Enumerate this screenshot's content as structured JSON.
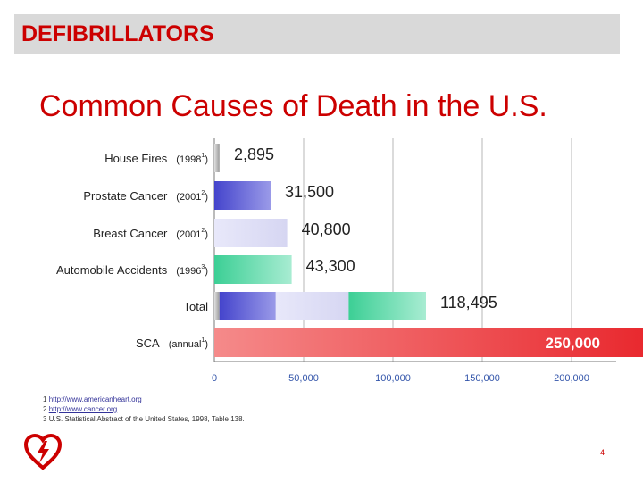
{
  "header": {
    "title": "DEFIBRILLATORS"
  },
  "slide": {
    "title": "Common Causes of Death in the U.S."
  },
  "colors": {
    "accent": "#cc0000",
    "header_bg": "#d9d9d9",
    "house_fires": "#9a9a9a",
    "prostate_cancer": "#4444cc",
    "breast_cancer": "#d6d6f2",
    "automobile_accidents": "#3ccf95",
    "sca": "#e8252b",
    "grid": "#999999",
    "tick_text": "#3355aa"
  },
  "chart_data": {
    "type": "bar",
    "orientation": "horizontal",
    "title": "Common Causes of Death in the U.S.",
    "xlim": [
      0,
      250000
    ],
    "xticks": [
      "0",
      "50,000",
      "100,000",
      "150,000",
      "200,000"
    ],
    "xtick_values": [
      0,
      50000,
      100000,
      150000,
      200000
    ],
    "grid": true,
    "rows": [
      {
        "key": "house_fires",
        "label": "House Fires",
        "note_prefix": "(1998",
        "note_sup": "1",
        "note_suffix": ")",
        "value": 2895,
        "value_label": "2,895"
      },
      {
        "key": "prostate_cancer",
        "label": "Prostate Cancer",
        "note_prefix": "(2001",
        "note_sup": "2",
        "note_suffix": ")",
        "value": 31500,
        "value_label": "31,500"
      },
      {
        "key": "breast_cancer",
        "label": "Breast Cancer",
        "note_prefix": "(2001",
        "note_sup": "2",
        "note_suffix": ")",
        "value": 40800,
        "value_label": "40,800"
      },
      {
        "key": "automobile_accidents",
        "label": "Automobile Accidents",
        "note_prefix": "(1996",
        "note_sup": "3",
        "note_suffix": ")",
        "value": 43300,
        "value_label": "43,300"
      },
      {
        "key": "total",
        "label": "Total",
        "note_prefix": "",
        "note_sup": "",
        "note_suffix": "",
        "value": 118495,
        "value_label": "118,495",
        "stacked_of": [
          "house_fires",
          "prostate_cancer",
          "breast_cancer",
          "automobile_accidents"
        ]
      },
      {
        "key": "sca",
        "label": "SCA",
        "note_prefix": "(annual",
        "note_sup": "1",
        "note_suffix": ")",
        "value": 250000,
        "value_label": "250,000"
      }
    ]
  },
  "footnotes": [
    {
      "num": "1",
      "text": "http://www.americanheart.org",
      "link": true
    },
    {
      "num": "2",
      "text": "http://www.cancer.org",
      "link": true
    },
    {
      "num": "3",
      "text": "U.S. Statistical Abstract of the United States, 1998, Table 138.",
      "link": false
    }
  ],
  "logo": {
    "icon": "heart-defibrillator-icon"
  },
  "page": {
    "number": "4"
  }
}
